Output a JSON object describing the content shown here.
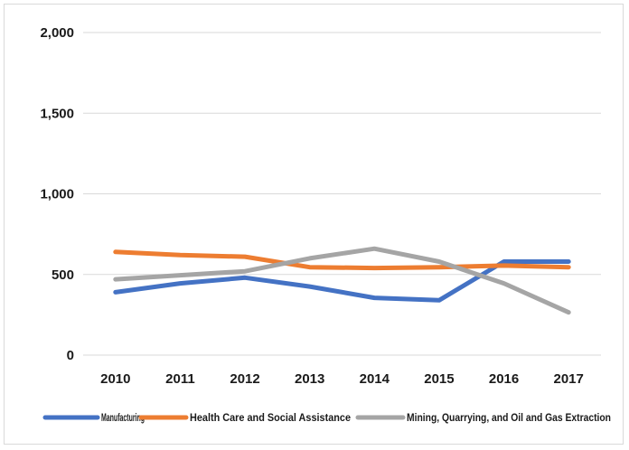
{
  "chart_data": {
    "type": "line",
    "title": "",
    "xlabel": "",
    "ylabel": "",
    "categories": [
      "2010",
      "2011",
      "2012",
      "2013",
      "2014",
      "2015",
      "2016",
      "2017"
    ],
    "ylim": [
      0,
      2000
    ],
    "yticks": [
      0,
      500,
      1000,
      1500,
      2000
    ],
    "ytick_labels": [
      "0",
      "500",
      "1,000",
      "1,500",
      "2,000"
    ],
    "grid": true,
    "legend_position": "bottom",
    "series": [
      {
        "name": "Manufacturing",
        "color": "#4472c4",
        "values": [
          390,
          445,
          480,
          425,
          355,
          340,
          580,
          580
        ]
      },
      {
        "name": "Health Care and Social Assistance",
        "color": "#ed7d31",
        "values": [
          640,
          620,
          610,
          545,
          540,
          545,
          555,
          545
        ]
      },
      {
        "name": "Mining, Quarrying, and Oil and Gas Extraction",
        "color": "#a5a5a5",
        "values": [
          470,
          495,
          520,
          600,
          660,
          580,
          445,
          265
        ]
      }
    ]
  }
}
